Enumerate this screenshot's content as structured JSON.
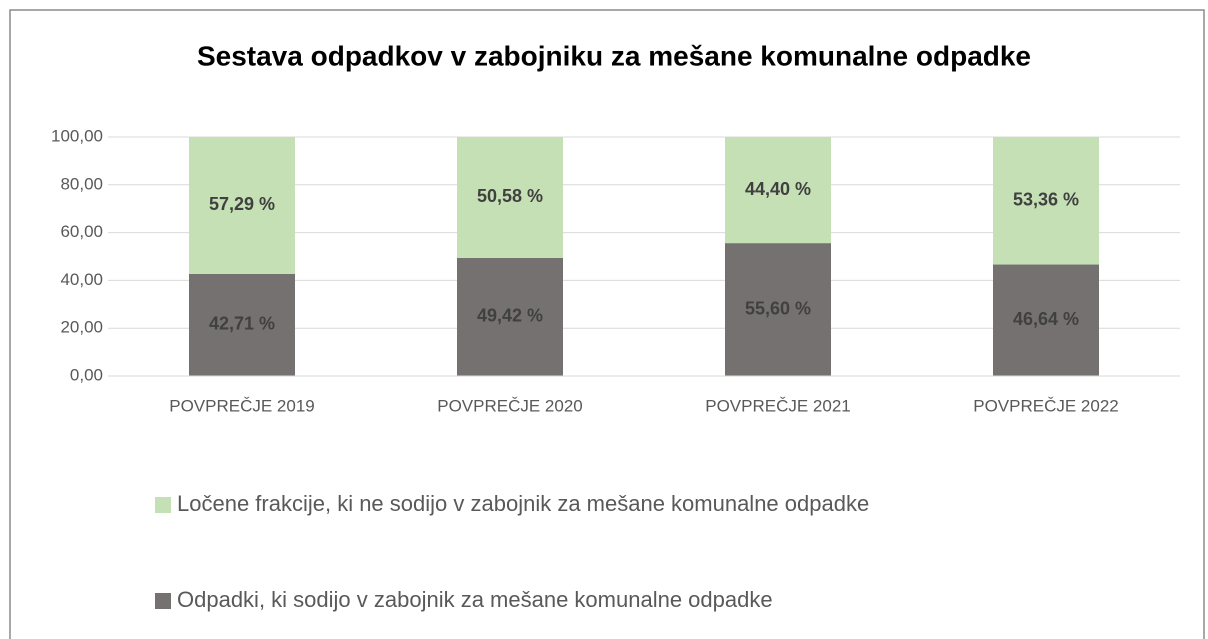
{
  "chart_data": {
    "type": "stacked_bar",
    "title": "Sestava odpadkov v zabojniku za mešane komunalne odpadke",
    "categories": [
      "POVPREČJE 2019",
      "POVPREČJE 2020",
      "POVPREČJE 2021",
      "POVPREČJE 2022"
    ],
    "series": [
      {
        "name": "Odpadki, ki sodijo v zabojnik za mešane komunalne odpadke",
        "color": "#767171",
        "values": [
          42.71,
          49.42,
          55.6,
          46.64
        ],
        "value_labels": [
          "42,71 %",
          "49,42 %",
          "55,60 %",
          "46,64 %"
        ]
      },
      {
        "name": "Ločene frakcije, ki ne sodijo v zabojnik za mešane komunalne odpadke",
        "color": "#c5e0b4",
        "values": [
          57.29,
          50.58,
          44.4,
          53.36
        ],
        "value_labels": [
          "57,29 %",
          "50,58 %",
          "44,40 %",
          "53,36 %"
        ]
      }
    ],
    "ylim": [
      0,
      100
    ],
    "yticks": [
      {
        "value": 0,
        "label": "0,00"
      },
      {
        "value": 20,
        "label": "20,00"
      },
      {
        "value": 40,
        "label": "40,00"
      },
      {
        "value": 60,
        "label": "60,00"
      },
      {
        "value": 80,
        "label": "80,00"
      },
      {
        "value": 100,
        "label": "100,00"
      }
    ],
    "grid": true,
    "legend": "bottom"
  }
}
